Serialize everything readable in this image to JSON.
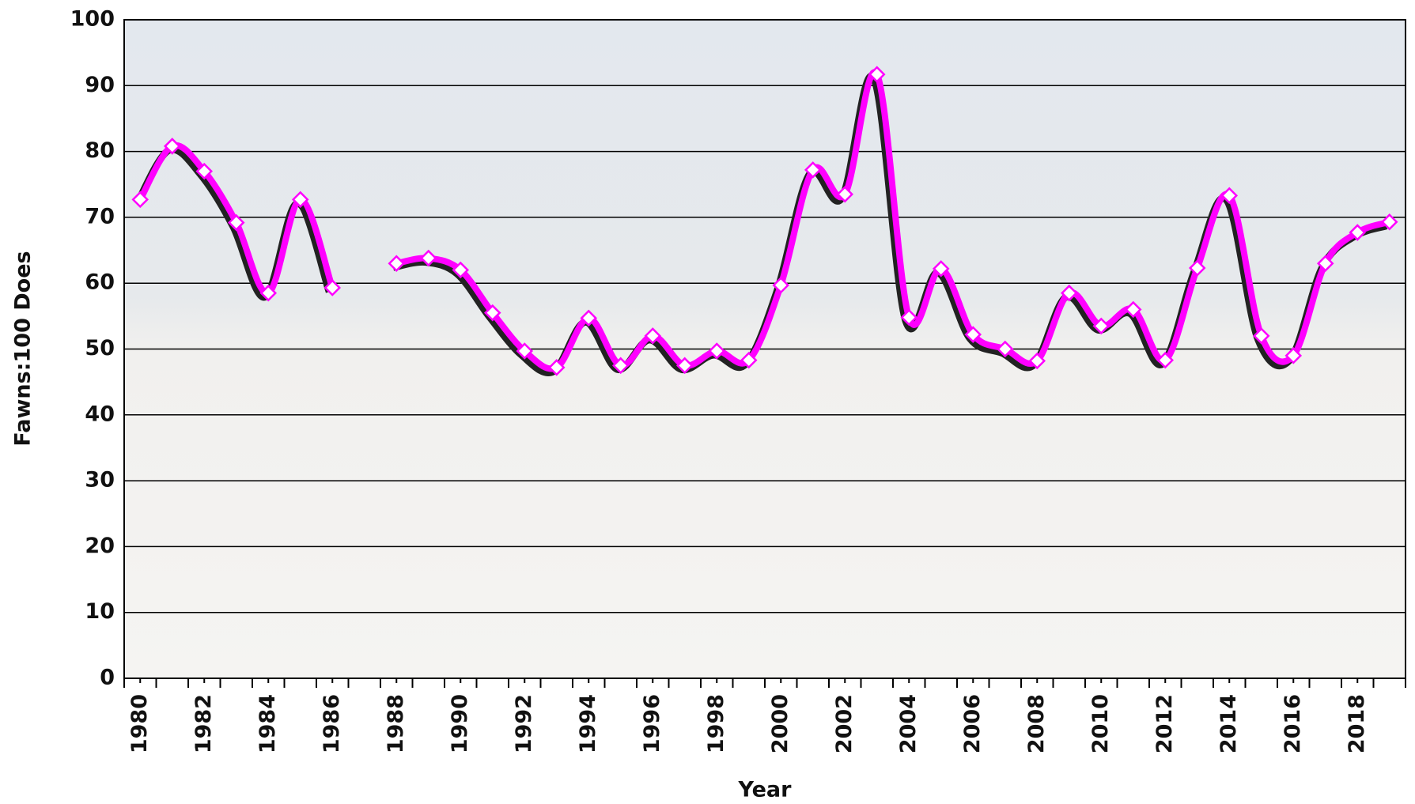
{
  "chart_data": {
    "type": "line",
    "y_label": "Fawns:100 Does",
    "x_label": "Year",
    "x": [
      1980,
      1981,
      1982,
      1983,
      1984,
      1985,
      1986,
      1987,
      1988,
      1989,
      1990,
      1991,
      1992,
      1993,
      1994,
      1995,
      1996,
      1997,
      1998,
      1999,
      2000,
      2001,
      2002,
      2003,
      2004,
      2005,
      2006,
      2007,
      2008,
      2009,
      2010,
      2011,
      2012,
      2013,
      2014,
      2015,
      2016,
      2017,
      2018,
      2019
    ],
    "series": [
      {
        "color": "#ff00ff",
        "values": [
          72.7,
          80.8,
          77,
          69.2,
          58.5,
          72.7,
          59.3,
          null,
          63,
          63.8,
          62,
          55.5,
          49.7,
          47.2,
          54.7,
          47.5,
          52,
          47.5,
          49.7,
          48.3,
          59.7,
          77.2,
          73.5,
          91.7,
          54.8,
          62.2,
          52.2,
          50,
          48.2,
          58.5,
          53.5,
          56,
          48.3,
          62.3,
          73.3,
          52,
          49,
          63,
          67.7,
          69.3
        ]
      }
    ],
    "xlim": [
      1979.5,
      2019.5
    ],
    "xticks": [
      1980,
      1982,
      1984,
      1986,
      1988,
      1990,
      1992,
      1994,
      1996,
      1998,
      2000,
      2002,
      2004,
      2006,
      2008,
      2010,
      2012,
      2014,
      2016,
      2018
    ],
    "ylim": [
      0,
      100
    ],
    "yticks": [
      0,
      10,
      20,
      30,
      40,
      50,
      60,
      70,
      80,
      90,
      100
    ],
    "grid": true
  }
}
